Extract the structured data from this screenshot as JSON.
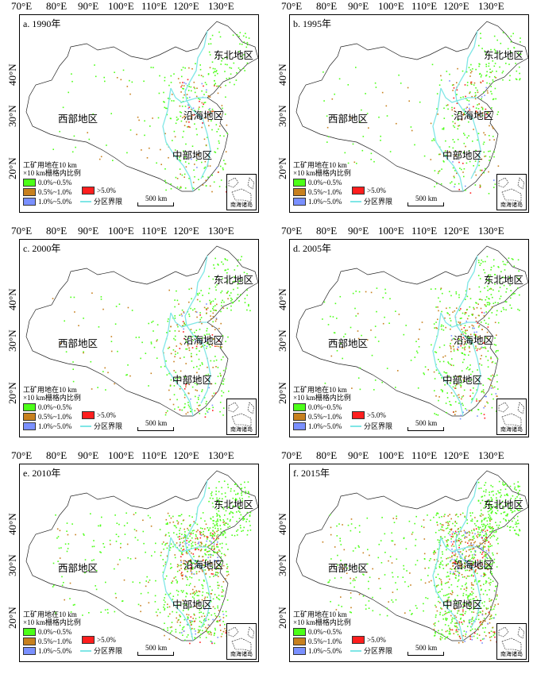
{
  "x_ticks": [
    "70°E",
    "80°E",
    "90°E",
    "100°E",
    "110°E",
    "120°E",
    "130°E"
  ],
  "y_ticks": [
    "40°N",
    "30°N",
    "20°N"
  ],
  "panels": [
    {
      "title": "a. 1990年",
      "density": 1
    },
    {
      "title": "b. 1995年",
      "density": 1
    },
    {
      "title": "c. 2000年",
      "density": 1.2
    },
    {
      "title": "d. 2005年",
      "density": 1.5
    },
    {
      "title": "e. 2010年",
      "density": 2.6
    },
    {
      "title": "f. 2015年",
      "density": 3.2
    }
  ],
  "regions": {
    "west": "西部地区",
    "northeast": "东北地区",
    "coastal": "沿海地区",
    "central": "中部地区"
  },
  "legend": {
    "title_line1": "工矿用地在10 km",
    "title_line2": "×10 km栅格内比例",
    "items": [
      {
        "label": "0.0%~0.5%",
        "color": "#4cff18"
      },
      {
        "label": "0.5%~1.0%",
        "color": "#c7801e"
      },
      {
        "label": "1.0%~5.0%",
        "color": "#7a90ff"
      },
      {
        "label": ">5.0%",
        "color": "#ff1e1e"
      }
    ],
    "boundary_label": "分区界限",
    "boundary_color": "#7fe6e6"
  },
  "scale_label": "500 km",
  "inset_label": "南海诸岛"
}
